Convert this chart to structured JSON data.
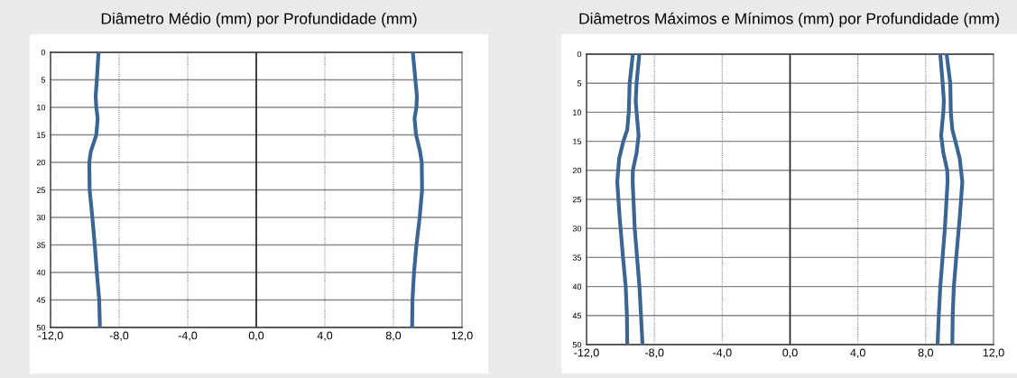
{
  "chart_data": [
    {
      "type": "line",
      "title": "Diâmetro Médio (mm) por Profundidade (mm)",
      "xlim": [
        -12,
        12
      ],
      "ylim": [
        50,
        0
      ],
      "xticks": [
        {
          "value": -12,
          "label": "-12,0"
        },
        {
          "value": -8,
          "label": "-8,0"
        },
        {
          "value": -4,
          "label": "-4,0"
        },
        {
          "value": 0,
          "label": "0,0"
        },
        {
          "value": 4,
          "label": "4,0"
        },
        {
          "value": 8,
          "label": "8,0"
        },
        {
          "value": 12,
          "label": "12,0"
        }
      ],
      "yticks": [
        0,
        5,
        10,
        15,
        20,
        25,
        30,
        35,
        40,
        45,
        50
      ],
      "grid": true,
      "marker": "none",
      "line_style": "solid",
      "ref_lines": [
        {
          "axis": "x",
          "value": 0,
          "color": "#222222"
        }
      ],
      "series": [
        {
          "color": "#3d6593",
          "x": [
            -9.2,
            -9.3,
            -9.37,
            -9.33,
            -9.25,
            -9.33,
            -9.65,
            -9.74,
            -9.72,
            -9.56,
            -9.42,
            -9.3,
            -9.16,
            -9.12
          ],
          "values": [
            0,
            5,
            8,
            10,
            12,
            15,
            18,
            20,
            25,
            30,
            35,
            40,
            45,
            50
          ]
        },
        {
          "color": "#3d6593",
          "x": [
            9.13,
            9.28,
            9.37,
            9.34,
            9.23,
            9.32,
            9.55,
            9.65,
            9.67,
            9.53,
            9.34,
            9.2,
            9.11,
            9.09
          ],
          "values": [
            0,
            5,
            8,
            10,
            12,
            15,
            18,
            20,
            25,
            30,
            35,
            40,
            45,
            50
          ]
        }
      ]
    },
    {
      "type": "line",
      "title": "Diâmetros Máximos e Mínimos (mm) por Profundidade (mm)",
      "xlim": [
        -12,
        12
      ],
      "ylim": [
        50,
        0
      ],
      "xticks": [
        {
          "value": -12,
          "label": "-12,0"
        },
        {
          "value": -8,
          "label": "-8,0"
        },
        {
          "value": -4,
          "label": "-4,0"
        },
        {
          "value": 0,
          "label": "0,0"
        },
        {
          "value": 4,
          "label": "4,0"
        },
        {
          "value": 8,
          "label": "8,0"
        },
        {
          "value": 12,
          "label": "12,0"
        }
      ],
      "yticks": [
        0,
        5,
        10,
        15,
        20,
        25,
        30,
        35,
        40,
        45,
        50
      ],
      "grid": true,
      "marker": "none",
      "line_style": "solid",
      "ref_lines": [
        {
          "axis": "x",
          "value": 0,
          "color": "#222222"
        }
      ],
      "series": [
        {
          "color": "#3d6593",
          "x": [
            -9.27,
            -9.46,
            -9.51,
            -9.6,
            -9.83,
            -10.08,
            -10.19,
            -10.05,
            -9.85,
            -9.69,
            -9.62,
            -9.6
          ],
          "values": [
            0,
            5,
            10,
            13,
            15,
            18,
            22,
            28,
            35,
            40,
            45,
            50
          ]
        },
        {
          "color": "#3d6593",
          "x": [
            -8.89,
            -9.05,
            -9.1,
            -9.05,
            -8.93,
            -9.05,
            -9.27,
            -9.28,
            -9.16,
            -8.88,
            -8.79,
            -8.7
          ],
          "values": [
            0,
            5,
            8,
            10,
            14,
            17,
            20,
            22,
            30,
            40,
            45,
            50
          ]
        },
        {
          "color": "#3d6593",
          "x": [
            8.86,
            9.0,
            9.07,
            9.04,
            8.91,
            9.04,
            9.27,
            9.29,
            9.13,
            8.86,
            8.77,
            8.7
          ],
          "values": [
            0,
            5,
            8,
            10,
            14,
            17,
            20,
            22,
            30,
            40,
            45,
            50
          ]
        },
        {
          "color": "#3d6593",
          "x": [
            9.23,
            9.45,
            9.48,
            9.57,
            9.75,
            10.01,
            10.16,
            10.01,
            9.8,
            9.66,
            9.59,
            9.57
          ],
          "values": [
            0,
            5,
            10,
            13,
            15,
            18,
            22,
            28,
            35,
            40,
            45,
            50
          ]
        }
      ]
    }
  ]
}
